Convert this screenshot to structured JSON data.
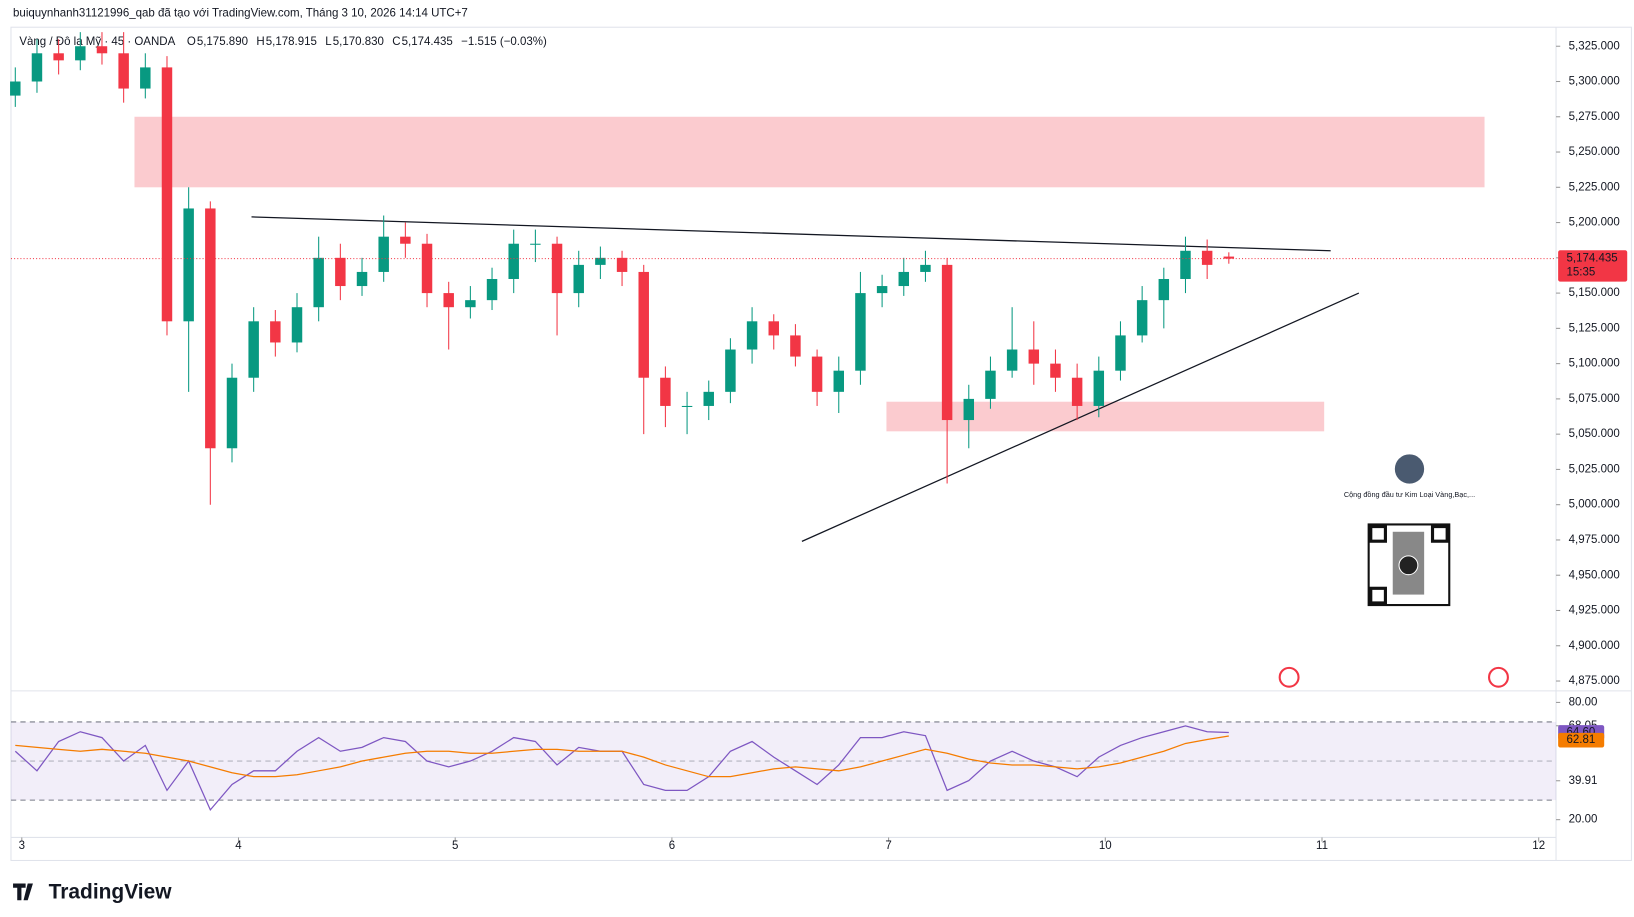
{
  "header": {
    "created": "buiquynhanh31121996_qab đã tạo với TradingView.com, Tháng 3 10, 2026 14:14 UTC+7",
    "symbol": "Vàng / Đô la Mỹ · 45 · OANDA",
    "ohlc": [
      {
        "key": "O",
        "value": "5,175.890"
      },
      {
        "key": "H",
        "value": "5,178.915"
      },
      {
        "key": "L",
        "value": "5,170.830"
      },
      {
        "key": "C",
        "value": "5,174.435"
      }
    ],
    "change": "−1.515 (−0.03%)"
  },
  "chart_data": {
    "type": "candlestick",
    "up_color": "#089981",
    "down_color": "#f23645",
    "x": [
      2.97,
      3.07,
      3.17,
      3.27,
      3.37,
      3.47,
      3.57,
      3.67,
      3.77,
      3.87,
      3.97,
      4.07,
      4.17,
      4.27,
      4.37,
      4.47,
      4.57,
      4.67,
      4.77,
      4.87,
      4.97,
      5.07,
      5.17,
      5.27,
      5.37,
      5.47,
      5.57,
      5.67,
      5.77,
      5.87,
      5.97,
      6.07,
      6.17,
      6.27,
      6.37,
      6.47,
      6.57,
      6.67,
      6.77,
      6.87,
      6.97,
      7.07,
      7.17,
      7.27,
      7.37,
      7.47,
      7.57,
      7.67,
      7.77,
      7.87,
      7.97,
      8.07,
      8.17,
      8.27,
      8.37,
      8.47,
      8.57
    ],
    "open": [
      5290,
      5300,
      5320,
      5315,
      5325,
      5320,
      5295,
      5310,
      5130,
      5210,
      5040,
      5090,
      5130,
      5115,
      5140,
      5175,
      5155,
      5165,
      5190,
      5185,
      5150,
      5140,
      5145,
      5160,
      5185,
      5185,
      5150,
      5170,
      5175,
      5165,
      5090,
      5070,
      5070,
      5080,
      5110,
      5130,
      5120,
      5105,
      5080,
      5095,
      5150,
      5155,
      5165,
      5170,
      5060,
      5075,
      5095,
      5110,
      5100,
      5090,
      5070,
      5095,
      5120,
      5145,
      5160,
      5180,
      5175.89
    ],
    "high": [
      5310,
      5330,
      5330,
      5335,
      5335,
      5335,
      5320,
      5318,
      5225,
      5215,
      5100,
      5140,
      5138,
      5150,
      5190,
      5185,
      5175,
      5205,
      5200,
      5192,
      5158,
      5155,
      5168,
      5195,
      5195,
      5190,
      5180,
      5183,
      5180,
      5170,
      5098,
      5080,
      5088,
      5118,
      5140,
      5135,
      5128,
      5110,
      5105,
      5165,
      5163,
      5175,
      5180,
      5175,
      5085,
      5105,
      5140,
      5130,
      5110,
      5100,
      5105,
      5130,
      5155,
      5168,
      5190,
      5188,
      5178.915
    ],
    "low": [
      5282,
      5292,
      5305,
      5308,
      5312,
      5285,
      5288,
      5120,
      5080,
      5000,
      5030,
      5080,
      5105,
      5108,
      5130,
      5145,
      5148,
      5158,
      5175,
      5140,
      5110,
      5132,
      5138,
      5150,
      5172,
      5120,
      5140,
      5160,
      5155,
      5050,
      5055,
      5050,
      5060,
      5072,
      5100,
      5110,
      5098,
      5070,
      5065,
      5085,
      5140,
      5148,
      5158,
      5015,
      5040,
      5068,
      5090,
      5085,
      5080,
      5060,
      5062,
      5088,
      5115,
      5125,
      5150,
      5160,
      5170.83
    ],
    "close": [
      5300,
      5320,
      5315,
      5325,
      5320,
      5295,
      5310,
      5130,
      5210,
      5040,
      5090,
      5130,
      5115,
      5140,
      5175,
      5155,
      5165,
      5190,
      5185,
      5150,
      5140,
      5145,
      5160,
      5185,
      5185,
      5150,
      5170,
      5175,
      5165,
      5090,
      5070,
      5070,
      5080,
      5110,
      5130,
      5120,
      5105,
      5080,
      5095,
      5150,
      5155,
      5165,
      5170,
      5060,
      5075,
      5095,
      5110,
      5100,
      5090,
      5070,
      5095,
      5120,
      5145,
      5160,
      5180,
      5170,
      5174.435
    ],
    "xlim": [
      2.95,
      10.08
    ],
    "xticks": [
      3,
      4,
      5,
      6,
      7,
      {
        "value": 8,
        "label": "10"
      },
      {
        "value": 9,
        "label": "11"
      },
      {
        "value": 10,
        "label": "12"
      }
    ],
    "ylim": [
      4868,
      5337
    ],
    "yticks": [
      {
        "value": 5325,
        "label": "5,325.000"
      },
      {
        "value": 5300,
        "label": "5,300.000"
      },
      {
        "value": 5275,
        "label": "5,275.000"
      },
      {
        "value": 5250,
        "label": "5,250.000"
      },
      {
        "value": 5225,
        "label": "5,225.000"
      },
      {
        "value": 5200,
        "label": "5,200.000"
      },
      {
        "value": 5175,
        "label": "5,175.000"
      },
      {
        "value": 5150,
        "label": "5,150.000"
      },
      {
        "value": 5125,
        "label": "5,125.000"
      },
      {
        "value": 5100,
        "label": "5,100.000"
      },
      {
        "value": 5075,
        "label": "5,075.000"
      },
      {
        "value": 5050,
        "label": "5,050.000"
      },
      {
        "value": 5025,
        "label": "5,025.000"
      },
      {
        "value": 5000,
        "label": "5,000.000"
      },
      {
        "value": 4975,
        "label": "4,975.000"
      },
      {
        "value": 4950,
        "label": "4,950.000"
      },
      {
        "value": 4925,
        "label": "4,925.000"
      },
      {
        "value": 4900,
        "label": "4,900.000"
      },
      {
        "value": 4875,
        "label": "4,875.000"
      }
    ],
    "last_price_label": "5,174.435",
    "countdown": "15:35",
    "last_price_color": "#f23645",
    "zones": [
      {
        "top": 5275,
        "bottom": 5225,
        "x0": 3.52,
        "x1": 9.75
      },
      {
        "top": 5073,
        "bottom": 5052,
        "x0": 6.99,
        "x1": 9.01
      }
    ],
    "zone_color": "#f7a1a8",
    "trendlines": [
      {
        "x0": 4.06,
        "y0": 5204,
        "x1": 9.04,
        "y1": 5180
      },
      {
        "x0": 6.6,
        "y0": 4974,
        "x1": 9.17,
        "y1": 5150
      }
    ],
    "rsi": {
      "ylim": [
        10.9,
        85.9
      ],
      "yticks": [
        {
          "value": 80,
          "label": "80.00"
        },
        {
          "value": 68.05,
          "label": "68.05"
        },
        {
          "value": 39.91,
          "label": "39.91"
        },
        {
          "value": 20,
          "label": "20.00"
        }
      ],
      "levels": [
        30,
        50,
        70
      ],
      "series": [
        {
          "color": "#7e57c2",
          "values": [
            55,
            45,
            60,
            65,
            62,
            50,
            58,
            35,
            50,
            25,
            38,
            45,
            45,
            55,
            62,
            55,
            57,
            62,
            60,
            50,
            47,
            50,
            55,
            62,
            60,
            48,
            57,
            55,
            55,
            38,
            35,
            35,
            42,
            55,
            60,
            52,
            45,
            38,
            48,
            62,
            62,
            65,
            63,
            35,
            40,
            50,
            55,
            50,
            47,
            42,
            52,
            58,
            62,
            65,
            68,
            65,
            64.6
          ],
          "last_label": "64.60"
        },
        {
          "color": "#f57c00",
          "values": [
            58,
            57,
            56,
            55,
            56,
            55,
            54,
            52,
            50,
            47,
            44,
            42,
            42,
            43,
            45,
            47,
            50,
            52,
            54,
            55,
            55,
            54,
            54,
            55,
            56,
            56,
            55,
            55,
            55,
            52,
            48,
            45,
            42,
            42,
            44,
            46,
            47,
            46,
            45,
            47,
            50,
            53,
            56,
            54,
            51,
            49,
            48,
            48,
            47,
            46,
            47,
            49,
            52,
            55,
            59,
            61,
            62.81
          ],
          "last_label": "62.81"
        }
      ]
    }
  },
  "card": {
    "text": "Cộng đồng đầu tư Kim Loại Vàng,Bạc,..."
  },
  "brand": "TradingView"
}
